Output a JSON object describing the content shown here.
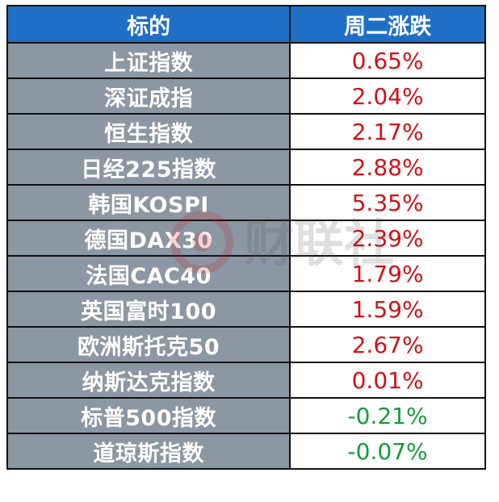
{
  "header": {
    "col1": "标的",
    "col2": "周二涨跌"
  },
  "rows": [
    {
      "name": "上证指数",
      "value": "0.65%",
      "dir": "up"
    },
    {
      "name": "深证成指",
      "value": "2.04%",
      "dir": "up"
    },
    {
      "name": "恒生指数",
      "value": "2.17%",
      "dir": "up"
    },
    {
      "name": "日经225指数",
      "value": "2.88%",
      "dir": "up"
    },
    {
      "name": "韩国KOSPI",
      "value": "5.35%",
      "dir": "up"
    },
    {
      "name": "德国DAX30",
      "value": "2.39%",
      "dir": "up"
    },
    {
      "name": "法国CAC40",
      "value": "1.79%",
      "dir": "up"
    },
    {
      "name": "英国富时100",
      "value": "1.59%",
      "dir": "up"
    },
    {
      "name": "欧洲斯托克50",
      "value": "2.67%",
      "dir": "up"
    },
    {
      "name": "纳斯达克指数",
      "value": "0.01%",
      "dir": "up"
    },
    {
      "name": "标普500指数",
      "value": "-0.21%",
      "dir": "down"
    },
    {
      "name": "道琼斯指数",
      "value": "-0.07%",
      "dir": "down"
    }
  ],
  "colors": {
    "header_bg": "#1f6fc6",
    "name_bg": "#8b97a3",
    "up": "#d40f16",
    "down": "#159b3a"
  },
  "watermark": {
    "text": "财联社"
  }
}
